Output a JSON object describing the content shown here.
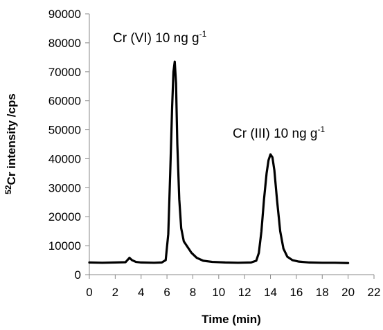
{
  "chart_data": {
    "type": "line",
    "xlabel": "Time (min)",
    "ylabel_superscript": "52",
    "ylabel_main": "Cr intensity /cps",
    "xlim": [
      0,
      22
    ],
    "ylim": [
      0,
      90000
    ],
    "x_ticks": [
      "0",
      "2",
      "4",
      "6",
      "8",
      "10",
      "12",
      "14",
      "16",
      "18",
      "20",
      "22"
    ],
    "y_ticks": [
      "0",
      "10000",
      "20000",
      "30000",
      "40000",
      "50000",
      "60000",
      "70000",
      "80000",
      "90000"
    ],
    "grid": false,
    "legend": "none",
    "line_color": "#000000",
    "annotations": [
      {
        "text": "Cr (VI) 10 ng g",
        "superscript": "-1",
        "x": 6.6,
        "y": 73000
      },
      {
        "text": "Cr (III) 10 ng g",
        "superscript": "-1",
        "x": 14.0,
        "y": 41000
      }
    ],
    "series": [
      {
        "x": [
          0,
          1,
          2,
          2.8,
          3.1,
          3.3,
          3.6,
          4,
          5,
          5.6,
          5.9,
          6.1,
          6.25,
          6.4,
          6.5,
          6.6,
          6.7,
          6.8,
          6.95,
          7.1,
          7.3,
          7.6,
          7.9,
          8.3,
          8.8,
          9.5,
          10.5,
          11.5,
          12.5,
          12.9,
          13.1,
          13.3,
          13.5,
          13.7,
          13.85,
          14.0,
          14.15,
          14.3,
          14.5,
          14.75,
          15.0,
          15.3,
          15.7,
          16.2,
          17,
          18,
          19,
          20
        ],
        "y": [
          4200,
          4100,
          4200,
          4300,
          5800,
          5000,
          4400,
          4200,
          4100,
          4200,
          5000,
          14000,
          35000,
          58000,
          70000,
          73500,
          66000,
          45000,
          26000,
          16000,
          11500,
          9500,
          7500,
          5800,
          4800,
          4400,
          4200,
          4100,
          4200,
          4800,
          7500,
          15000,
          26000,
          35000,
          39500,
          41500,
          40500,
          36000,
          26000,
          15000,
          9000,
          6200,
          5000,
          4500,
          4200,
          4100,
          4100,
          4000
        ]
      }
    ]
  }
}
